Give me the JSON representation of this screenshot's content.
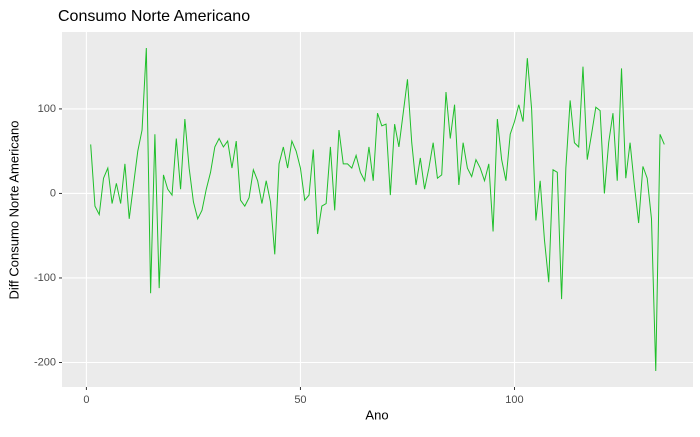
{
  "chart_data": {
    "type": "line",
    "title": "Consumo Norte Americano",
    "x_label": "Ano",
    "y_label": "Diff Consumo Norte Americano",
    "x": [
      1,
      2,
      3,
      4,
      5,
      6,
      7,
      8,
      9,
      10,
      11,
      12,
      13,
      14,
      15,
      16,
      17,
      18,
      19,
      20,
      21,
      22,
      23,
      24,
      25,
      26,
      27,
      28,
      29,
      30,
      31,
      32,
      33,
      34,
      35,
      36,
      37,
      38,
      39,
      40,
      41,
      42,
      43,
      44,
      45,
      46,
      47,
      48,
      49,
      50,
      51,
      52,
      53,
      54,
      55,
      56,
      57,
      58,
      59,
      60,
      61,
      62,
      63,
      64,
      65,
      66,
      67,
      68,
      69,
      70,
      71,
      72,
      73,
      74,
      75,
      76,
      77,
      78,
      79,
      80,
      81,
      82,
      83,
      84,
      85,
      86,
      87,
      88,
      89,
      90,
      91,
      92,
      93,
      94,
      95,
      96,
      97,
      98,
      99,
      100,
      101,
      102,
      103,
      104,
      105,
      106,
      107,
      108,
      109,
      110,
      111,
      112,
      113,
      114,
      115,
      116,
      117,
      118,
      119,
      120,
      121,
      122,
      123,
      124,
      125,
      126,
      127,
      128,
      129,
      130,
      131,
      132,
      133,
      134,
      135
    ],
    "values": [
      58,
      -15,
      -25,
      18,
      30,
      -12,
      12,
      -12,
      35,
      -30,
      10,
      50,
      75,
      172,
      -118,
      70,
      -112,
      22,
      5,
      -2,
      65,
      5,
      88,
      30,
      -10,
      -30,
      -20,
      5,
      25,
      55,
      65,
      55,
      62,
      30,
      62,
      -8,
      -15,
      -5,
      28,
      15,
      -12,
      15,
      -10,
      -72,
      35,
      55,
      30,
      62,
      50,
      30,
      -8,
      -2,
      52,
      -48,
      -15,
      -12,
      55,
      -20,
      75,
      35,
      35,
      30,
      45,
      25,
      15,
      55,
      15,
      95,
      80,
      82,
      -2,
      82,
      55,
      95,
      135,
      60,
      10,
      42,
      5,
      30,
      60,
      18,
      22,
      120,
      65,
      105,
      10,
      60,
      30,
      20,
      40,
      30,
      15,
      35,
      -45,
      88,
      40,
      15,
      70,
      85,
      105,
      85,
      160,
      100,
      -32,
      15,
      -55,
      -105,
      28,
      25,
      -125,
      30,
      110,
      60,
      55,
      150,
      40,
      70,
      102,
      98,
      0,
      60,
      95,
      15,
      148,
      18,
      60,
      10,
      -35,
      32,
      18,
      -30,
      -210,
      70,
      58
    ],
    "color": "#1fbf2a",
    "xlim": [
      -5.7,
      141.7
    ],
    "ylim": [
      -229,
      191
    ],
    "xticks": [
      0,
      50,
      100
    ],
    "yticks": [
      -200,
      -100,
      0,
      100
    ],
    "grid": true
  }
}
